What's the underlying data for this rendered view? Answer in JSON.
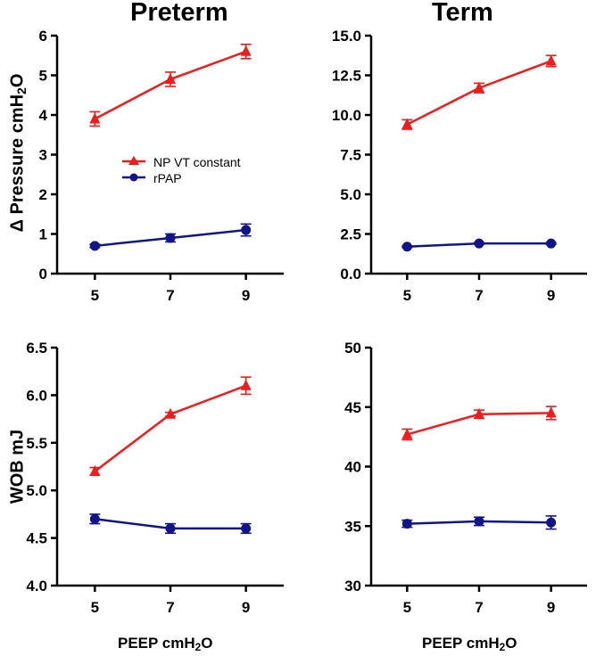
{
  "chart_data": [
    {
      "panel": "top-left",
      "type": "line",
      "title": "Preterm",
      "ylabel_main": "Δ Pressure cmH",
      "ylabel_sub": "2",
      "ylabel_end": "O",
      "xlabel": "",
      "categories": [
        "5",
        "7",
        "9"
      ],
      "x": [
        5,
        7,
        9
      ],
      "xlim": [
        4,
        10
      ],
      "ylim": [
        0,
        6
      ],
      "yticks": [
        0,
        1,
        2,
        3,
        4,
        5,
        6
      ],
      "ytick_labels": [
        "0",
        "1",
        "2",
        "3",
        "4",
        "5",
        "6"
      ],
      "legend_position": "center-right",
      "series": [
        {
          "name": "NP VT constant",
          "color": "#ee1c1c",
          "marker": "triangle",
          "values": [
            3.9,
            4.9,
            5.6
          ],
          "errors": [
            0.18,
            0.18,
            0.18
          ]
        },
        {
          "name": "rPAP",
          "color": "#12148a",
          "marker": "circle",
          "values": [
            0.7,
            0.9,
            1.1
          ],
          "errors": [
            0.04,
            0.1,
            0.15
          ]
        }
      ]
    },
    {
      "panel": "top-right",
      "type": "line",
      "title": "Term",
      "xlabel": "",
      "categories": [
        "5",
        "7",
        "9"
      ],
      "x": [
        5,
        7,
        9
      ],
      "xlim": [
        4,
        10
      ],
      "ylim": [
        0,
        15
      ],
      "yticks": [
        0,
        2.5,
        5,
        7.5,
        10,
        12.5,
        15
      ],
      "ytick_labels": [
        "0.0",
        "2.5",
        "5.0",
        "7.5",
        "10.0",
        "12.5",
        "15.0"
      ],
      "series": [
        {
          "name": "NP VT constant",
          "color": "#ee1c1c",
          "marker": "triangle",
          "values": [
            9.4,
            11.7,
            13.4
          ],
          "errors": [
            0.3,
            0.3,
            0.35
          ]
        },
        {
          "name": "rPAP",
          "color": "#12148a",
          "marker": "circle",
          "values": [
            1.7,
            1.9,
            1.9
          ],
          "errors": [
            0.05,
            0.05,
            0.05
          ]
        }
      ]
    },
    {
      "panel": "bottom-left",
      "type": "line",
      "title": "",
      "ylabel_main": "WOB mJ",
      "xlabel_main": "PEEP cmH",
      "xlabel_sub": "2",
      "xlabel_end": "O",
      "categories": [
        "5",
        "7",
        "9"
      ],
      "x": [
        5,
        7,
        9
      ],
      "xlim": [
        4,
        10
      ],
      "ylim": [
        4.0,
        6.5
      ],
      "yticks": [
        4.0,
        4.5,
        5.0,
        5.5,
        6.0,
        6.5
      ],
      "ytick_labels": [
        "4.0",
        "4.5",
        "5.0",
        "5.5",
        "6.0",
        "6.5"
      ],
      "series": [
        {
          "name": "NP VT constant",
          "color": "#ee1c1c",
          "marker": "triangle",
          "values": [
            5.2,
            5.8,
            6.1
          ],
          "errors": [
            0.04,
            0.02,
            0.09
          ]
        },
        {
          "name": "rPAP",
          "color": "#12148a",
          "marker": "circle",
          "values": [
            4.7,
            4.6,
            4.6
          ],
          "errors": [
            0.05,
            0.05,
            0.05
          ]
        }
      ]
    },
    {
      "panel": "bottom-right",
      "type": "line",
      "title": "",
      "xlabel_main": "PEEP cmH",
      "xlabel_sub": "2",
      "xlabel_end": "O",
      "categories": [
        "5",
        "7",
        "9"
      ],
      "x": [
        5,
        7,
        9
      ],
      "xlim": [
        4,
        10
      ],
      "ylim": [
        30,
        50
      ],
      "yticks": [
        30,
        35,
        40,
        45,
        50
      ],
      "ytick_labels": [
        "30",
        "35",
        "40",
        "45",
        "50"
      ],
      "series": [
        {
          "name": "NP VT constant",
          "color": "#ee1c1c",
          "marker": "triangle",
          "values": [
            42.7,
            44.4,
            44.5
          ],
          "errors": [
            0.45,
            0.35,
            0.55
          ]
        },
        {
          "name": "rPAP",
          "color": "#12148a",
          "marker": "circle",
          "values": [
            35.2,
            35.4,
            35.3
          ],
          "errors": [
            0.3,
            0.35,
            0.55
          ]
        }
      ]
    }
  ]
}
